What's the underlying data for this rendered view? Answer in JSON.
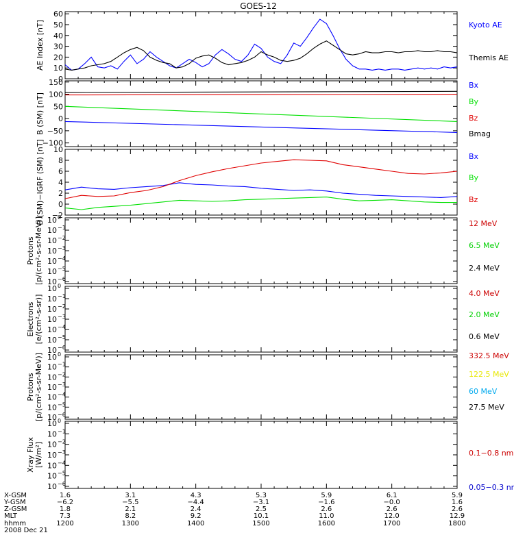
{
  "title": "GOES-12",
  "chart_data": [
    {
      "panel": "ae",
      "type": "line",
      "ylabel": "AE Index [nT]",
      "ylim": [
        0,
        62
      ],
      "yticks": [
        "0",
        "10",
        "20",
        "30",
        "40",
        "50",
        "60"
      ],
      "x": [
        12.0,
        12.1,
        12.2,
        12.3,
        12.4,
        12.5,
        12.6,
        12.7,
        12.8,
        12.9,
        13.0,
        13.1,
        13.2,
        13.3,
        13.4,
        13.5,
        13.6,
        13.7,
        13.8,
        13.9,
        14.0,
        14.1,
        14.2,
        14.3,
        14.4,
        14.5,
        14.6,
        14.7,
        14.8,
        14.9,
        15.0,
        15.1,
        15.2,
        15.3,
        15.4,
        15.5,
        15.6,
        15.7,
        15.8,
        15.9,
        16.0,
        16.1,
        16.2,
        16.3,
        16.4,
        16.5,
        16.6,
        16.7,
        16.8,
        16.9,
        17.0,
        17.1,
        17.2,
        17.3,
        17.4,
        17.5,
        17.6,
        17.7,
        17.8,
        17.9,
        18.0
      ],
      "series": [
        {
          "name": "Kyoto AE",
          "color": "#0000ff",
          "values": [
            13,
            8,
            9,
            14,
            20,
            11,
            10,
            12,
            9,
            16,
            22,
            14,
            18,
            25,
            20,
            16,
            12,
            10,
            14,
            18,
            15,
            11,
            14,
            22,
            27,
            23,
            18,
            16,
            22,
            32,
            28,
            20,
            16,
            14,
            22,
            33,
            30,
            38,
            47,
            55,
            51,
            40,
            28,
            18,
            12,
            9,
            9,
            8,
            9,
            8,
            9,
            9,
            8,
            9,
            10,
            9,
            10,
            9,
            11,
            10,
            11
          ]
        },
        {
          "name": "Themis AE",
          "color": "#000000",
          "values": [
            9,
            8,
            9,
            10,
            12,
            13,
            14,
            16,
            20,
            24,
            27,
            29,
            26,
            20,
            17,
            15,
            14,
            10,
            11,
            14,
            19,
            21,
            22,
            19,
            15,
            13,
            14,
            15,
            17,
            20,
            25,
            22,
            20,
            17,
            16,
            17,
            19,
            23,
            28,
            32,
            35,
            31,
            27,
            23,
            22,
            23,
            25,
            24,
            24,
            25,
            25,
            24,
            25,
            25,
            26,
            25,
            25,
            26,
            25,
            25,
            24
          ]
        }
      ]
    },
    {
      "panel": "b_sm",
      "type": "line",
      "ylabel": "B (SM) [nT]",
      "ylim": [
        -115,
        155
      ],
      "yticks": [
        "−100",
        "−50",
        "0",
        "50",
        "100",
        "150"
      ],
      "x": [
        12.0,
        18.0
      ],
      "series": [
        {
          "name": "Bx",
          "color": "#0000ff",
          "values": [
            -12,
            -57
          ]
        },
        {
          "name": "By",
          "color": "#00e000",
          "values": [
            50,
            -12
          ]
        },
        {
          "name": "Bz",
          "color": "#e00000",
          "values": [
            97,
            100
          ]
        },
        {
          "name": "Bmag",
          "color": "#000000",
          "values": [
            107,
            112
          ]
        }
      ]
    },
    {
      "panel": "b_minus_igrf",
      "type": "line",
      "ylabel": "B (SM)−IGRF (SM) [nT]",
      "ylim": [
        -2,
        10
      ],
      "yticks": [
        "−2",
        "0",
        "2",
        "4",
        "6",
        "8",
        "10"
      ],
      "x": [
        12.0,
        12.25,
        12.5,
        12.75,
        13.0,
        13.25,
        13.5,
        13.75,
        14.0,
        14.25,
        14.5,
        14.75,
        15.0,
        15.25,
        15.5,
        15.75,
        16.0,
        16.25,
        16.5,
        16.75,
        17.0,
        17.25,
        17.5,
        17.75,
        18.0
      ],
      "series": [
        {
          "name": "Bx",
          "color": "#0000ff",
          "values": [
            2.6,
            3.1,
            2.8,
            2.7,
            3.0,
            3.2,
            3.4,
            3.9,
            3.6,
            3.5,
            3.3,
            3.2,
            2.9,
            2.7,
            2.5,
            2.6,
            2.4,
            2.0,
            1.8,
            1.6,
            1.5,
            1.4,
            1.3,
            1.2,
            1.4
          ]
        },
        {
          "name": "By",
          "color": "#00e000",
          "values": [
            -0.7,
            -1.0,
            -0.6,
            -0.4,
            -0.2,
            0.1,
            0.4,
            0.7,
            0.6,
            0.5,
            0.6,
            0.8,
            0.9,
            1.0,
            1.1,
            1.2,
            1.3,
            0.9,
            0.6,
            0.7,
            0.8,
            0.6,
            0.4,
            0.3,
            0.3
          ]
        },
        {
          "name": "Bz",
          "color": "#e00000",
          "values": [
            1.0,
            1.6,
            1.4,
            1.5,
            2.1,
            2.5,
            3.2,
            4.3,
            5.2,
            5.9,
            6.5,
            7.0,
            7.5,
            7.8,
            8.1,
            8.0,
            7.9,
            7.2,
            6.8,
            6.4,
            6.0,
            5.6,
            5.5,
            5.7,
            6.0
          ]
        }
      ]
    },
    {
      "panel": "protons",
      "type": "line",
      "ylabel_lines": [
        "Protons",
        "[p/(cm²-s-sr-MeV)]"
      ],
      "yscale": "log",
      "ylim": [
        1e-06,
        1
      ],
      "yticks": [
        "10",
        "10",
        "10",
        "10",
        "10",
        "10",
        "10"
      ],
      "ytick_exponents": [
        "0",
        "−1",
        "−2",
        "−3",
        "−4",
        "−5",
        "−6"
      ],
      "series": [
        {
          "name": "12 MeV",
          "color": "#cc0000",
          "values": []
        },
        {
          "name": "6.5 MeV",
          "color": "#00d000",
          "values": []
        },
        {
          "name": "2.4 MeV",
          "color": "#000000",
          "values": []
        }
      ]
    },
    {
      "panel": "electrons",
      "type": "line",
      "ylabel_lines": [
        "Electrons",
        "[e/(cm²-s-sr)]"
      ],
      "yscale": "log",
      "ylim": [
        1e-06,
        1
      ],
      "yticks": [
        "10",
        "10",
        "10",
        "10",
        "10",
        "10",
        "10"
      ],
      "ytick_exponents": [
        "0",
        "−1",
        "−2",
        "−3",
        "−4",
        "−5",
        "−6"
      ],
      "series": [
        {
          "name": "4.0 MeV",
          "color": "#cc0000",
          "values": []
        },
        {
          "name": "2.0 MeV",
          "color": "#00d000",
          "values": []
        },
        {
          "name": "0.6 MeV",
          "color": "#000000",
          "values": []
        }
      ]
    },
    {
      "panel": "protons_high",
      "type": "line",
      "ylabel_lines": [
        "Protons",
        "[p/(cm²-s-sr-MeV)]"
      ],
      "yscale": "log",
      "ylim": [
        1e-06,
        1
      ],
      "yticks": [
        "10",
        "10",
        "10",
        "10",
        "10",
        "10",
        "10"
      ],
      "ytick_exponents": [
        "0",
        "−1",
        "−2",
        "−3",
        "−4",
        "−5",
        "−6"
      ],
      "series": [
        {
          "name": "332.5 MeV",
          "color": "#cc0000",
          "values": []
        },
        {
          "name": "122.5 MeV",
          "color": "#e8e800",
          "values": []
        },
        {
          "name": "60 MeV",
          "color": "#00aaee",
          "values": []
        },
        {
          "name": "27.5 MeV",
          "color": "#000000",
          "values": []
        }
      ]
    },
    {
      "panel": "xray",
      "type": "line",
      "ylabel_lines": [
        "Xray  Flux",
        "[W/m²]"
      ],
      "yscale": "log",
      "ylim": [
        1e-06,
        1
      ],
      "yticks": [
        "10",
        "10",
        "10",
        "10",
        "10",
        "10",
        "10"
      ],
      "ytick_exponents": [
        "0",
        "−1",
        "−2",
        "−3",
        "−4",
        "−5",
        "−6"
      ],
      "series": [
        {
          "name": "0.1−0.8 nm",
          "color": "#cc0000",
          "values": []
        },
        {
          "name": "0.05−0.3 nr",
          "color": "#0000cc",
          "values": []
        }
      ]
    }
  ],
  "x_axis": {
    "row_labels": [
      "X-GSM",
      "Y-GSM",
      "Z-GSM",
      "MLT",
      "hhmm"
    ],
    "date": "2008 Dec 21",
    "columns": [
      [
        "1.6",
        "−6.2",
        "1.8",
        "7.3",
        "1200"
      ],
      [
        "3.1",
        "−5.5",
        "2.1",
        "8.2",
        "1300"
      ],
      [
        "4.3",
        "−4.4",
        "2.4",
        "9.2",
        "1400"
      ],
      [
        "5.3",
        "−3.1",
        "2.5",
        "10.1",
        "1500"
      ],
      [
        "5.9",
        "−1.6",
        "2.6",
        "11.0",
        "1600"
      ],
      [
        "6.1",
        "−0.0",
        "2.6",
        "12.0",
        "1700"
      ],
      [
        "5.9",
        "1.6",
        "2.6",
        "12.9",
        "1800"
      ]
    ]
  }
}
